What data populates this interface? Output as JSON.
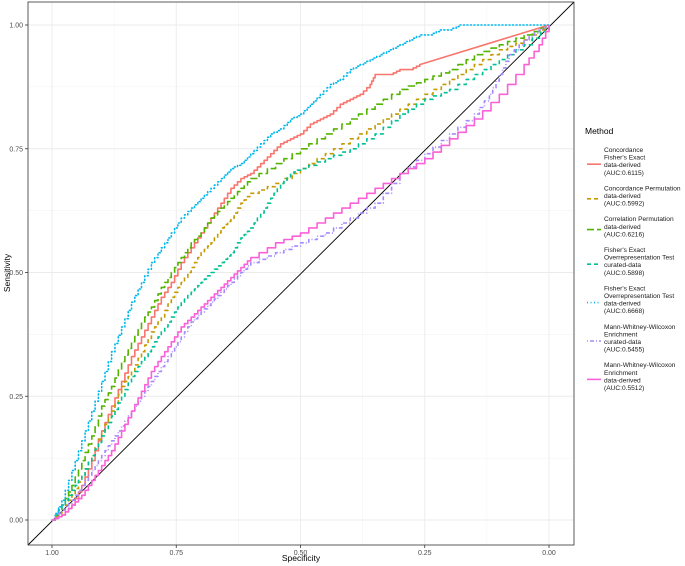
{
  "chart_data": {
    "type": "line",
    "xlabel": "Specificity",
    "ylabel": "Sensitivity",
    "x_reversed": true,
    "xlim": [
      1.0,
      0.0
    ],
    "ylim": [
      0.0,
      1.0
    ],
    "x_ticks": [
      "1.00",
      "0.75",
      "0.50",
      "0.25",
      "0.00"
    ],
    "y_ticks": [
      "0.00",
      "0.25",
      "0.50",
      "0.75",
      "1.00"
    ],
    "grid": true,
    "legend_position": "right",
    "legend_title": "Method",
    "reference_line": "diagonal",
    "series": [
      {
        "name": "Concordance Fisher's Exact data-derived (AUC:0.6115)",
        "label_lines": [
          "Concordance",
          "Fisher's Exact",
          "data-derived",
          "(AUC:0.6115)"
        ],
        "color": "#F8766D",
        "dash": "solid",
        "points": [
          [
            1,
            0
          ],
          [
            0.98,
            0.01
          ],
          [
            0.96,
            0.03
          ],
          [
            0.94,
            0.07
          ],
          [
            0.92,
            0.12
          ],
          [
            0.9,
            0.18
          ],
          [
            0.88,
            0.23
          ],
          [
            0.86,
            0.28
          ],
          [
            0.84,
            0.33
          ],
          [
            0.82,
            0.37
          ],
          [
            0.8,
            0.41
          ],
          [
            0.78,
            0.45
          ],
          [
            0.76,
            0.48
          ],
          [
            0.74,
            0.52
          ],
          [
            0.72,
            0.55
          ],
          [
            0.7,
            0.58
          ],
          [
            0.68,
            0.61
          ],
          [
            0.66,
            0.64
          ],
          [
            0.64,
            0.67
          ],
          [
            0.62,
            0.69
          ],
          [
            0.6,
            0.7
          ],
          [
            0.58,
            0.72
          ],
          [
            0.56,
            0.74
          ],
          [
            0.54,
            0.76
          ],
          [
            0.52,
            0.77
          ],
          [
            0.5,
            0.78
          ],
          [
            0.48,
            0.8
          ],
          [
            0.46,
            0.81
          ],
          [
            0.44,
            0.82
          ],
          [
            0.42,
            0.84
          ],
          [
            0.4,
            0.85
          ],
          [
            0.38,
            0.86
          ],
          [
            0.36,
            0.88
          ],
          [
            0.35,
            0.9
          ],
          [
            0.34,
            0.9
          ],
          [
            0.32,
            0.9
          ],
          [
            0.3,
            0.91
          ],
          [
            0.28,
            0.91
          ],
          [
            0.26,
            0.92
          ],
          [
            0,
            1
          ]
        ]
      },
      {
        "name": "Concordance Permutation data-derived (AUC:0.5992)",
        "label_lines": [
          "Concordance Permutation",
          "data-derived",
          "(AUC:0.5992)"
        ],
        "color": "#C49A00",
        "dash": "dashed",
        "points": [
          [
            1,
            0
          ],
          [
            0.98,
            0.02
          ],
          [
            0.96,
            0.05
          ],
          [
            0.94,
            0.09
          ],
          [
            0.92,
            0.13
          ],
          [
            0.9,
            0.18
          ],
          [
            0.88,
            0.22
          ],
          [
            0.86,
            0.27
          ],
          [
            0.84,
            0.3
          ],
          [
            0.82,
            0.34
          ],
          [
            0.8,
            0.38
          ],
          [
            0.78,
            0.41
          ],
          [
            0.76,
            0.45
          ],
          [
            0.74,
            0.48
          ],
          [
            0.72,
            0.51
          ],
          [
            0.7,
            0.54
          ],
          [
            0.68,
            0.56
          ],
          [
            0.66,
            0.59
          ],
          [
            0.64,
            0.61
          ],
          [
            0.62,
            0.64
          ],
          [
            0.6,
            0.66
          ],
          [
            0.55,
            0.68
          ],
          [
            0.5,
            0.71
          ],
          [
            0.45,
            0.74
          ],
          [
            0.4,
            0.77
          ],
          [
            0.35,
            0.8
          ],
          [
            0.3,
            0.83
          ],
          [
            0.25,
            0.86
          ],
          [
            0.2,
            0.89
          ],
          [
            0.15,
            0.92
          ],
          [
            0.1,
            0.95
          ],
          [
            0.05,
            0.97
          ],
          [
            0,
            1
          ]
        ]
      },
      {
        "name": "Correlation Permutation data-derived (AUC:0.6216)",
        "label_lines": [
          "Correlation Permutation",
          "data-derived",
          "(AUC:0.6216)"
        ],
        "color": "#53B400",
        "dash": "longdash",
        "points": [
          [
            1,
            0
          ],
          [
            0.98,
            0.03
          ],
          [
            0.96,
            0.07
          ],
          [
            0.94,
            0.12
          ],
          [
            0.92,
            0.17
          ],
          [
            0.9,
            0.23
          ],
          [
            0.88,
            0.27
          ],
          [
            0.86,
            0.32
          ],
          [
            0.84,
            0.36
          ],
          [
            0.82,
            0.4
          ],
          [
            0.8,
            0.43
          ],
          [
            0.78,
            0.47
          ],
          [
            0.76,
            0.5
          ],
          [
            0.74,
            0.53
          ],
          [
            0.72,
            0.56
          ],
          [
            0.7,
            0.58
          ],
          [
            0.68,
            0.61
          ],
          [
            0.66,
            0.63
          ],
          [
            0.64,
            0.65
          ],
          [
            0.62,
            0.67
          ],
          [
            0.6,
            0.69
          ],
          [
            0.55,
            0.72
          ],
          [
            0.5,
            0.75
          ],
          [
            0.45,
            0.78
          ],
          [
            0.4,
            0.81
          ],
          [
            0.35,
            0.84
          ],
          [
            0.3,
            0.87
          ],
          [
            0.25,
            0.89
          ],
          [
            0.2,
            0.91
          ],
          [
            0.15,
            0.94
          ],
          [
            0.1,
            0.96
          ],
          [
            0.05,
            0.98
          ],
          [
            0,
            1
          ]
        ]
      },
      {
        "name": "Fisher's Exact Overrepresentation Test curated-data (AUC:0.5898)",
        "label_lines": [
          "Fisher's Exact",
          "Overrepresentation Test",
          "curated-data",
          "(AUC:0.5898)"
        ],
        "color": "#00C094",
        "dash": "dashed",
        "points": [
          [
            1,
            0
          ],
          [
            0.98,
            0.03
          ],
          [
            0.96,
            0.06
          ],
          [
            0.94,
            0.09
          ],
          [
            0.92,
            0.13
          ],
          [
            0.9,
            0.17
          ],
          [
            0.88,
            0.21
          ],
          [
            0.86,
            0.25
          ],
          [
            0.84,
            0.29
          ],
          [
            0.82,
            0.32
          ],
          [
            0.8,
            0.35
          ],
          [
            0.78,
            0.38
          ],
          [
            0.76,
            0.41
          ],
          [
            0.74,
            0.44
          ],
          [
            0.72,
            0.46
          ],
          [
            0.7,
            0.48
          ],
          [
            0.68,
            0.5
          ],
          [
            0.66,
            0.52
          ],
          [
            0.64,
            0.54
          ],
          [
            0.62,
            0.57
          ],
          [
            0.6,
            0.59
          ],
          [
            0.58,
            0.62
          ],
          [
            0.56,
            0.65
          ],
          [
            0.54,
            0.68
          ],
          [
            0.52,
            0.7
          ],
          [
            0.5,
            0.71
          ],
          [
            0.45,
            0.73
          ],
          [
            0.4,
            0.75
          ],
          [
            0.35,
            0.78
          ],
          [
            0.3,
            0.82
          ],
          [
            0.25,
            0.85
          ],
          [
            0.2,
            0.87
          ],
          [
            0.15,
            0.9
          ],
          [
            0.1,
            0.93
          ],
          [
            0.05,
            0.96
          ],
          [
            0,
            1
          ]
        ]
      },
      {
        "name": "Fisher's Exact Overrepresentation Test data-derived (AUC:0.6668)",
        "label_lines": [
          "Fisher's Exact",
          "Overrepresentation Test",
          "data-derived",
          "(AUC:0.6668)"
        ],
        "color": "#00B6EB",
        "dash": "dotted",
        "points": [
          [
            1,
            0
          ],
          [
            0.98,
            0.04
          ],
          [
            0.96,
            0.1
          ],
          [
            0.94,
            0.16
          ],
          [
            0.92,
            0.22
          ],
          [
            0.9,
            0.28
          ],
          [
            0.88,
            0.34
          ],
          [
            0.86,
            0.39
          ],
          [
            0.84,
            0.44
          ],
          [
            0.82,
            0.48
          ],
          [
            0.8,
            0.52
          ],
          [
            0.78,
            0.55
          ],
          [
            0.76,
            0.58
          ],
          [
            0.74,
            0.61
          ],
          [
            0.72,
            0.63
          ],
          [
            0.7,
            0.65
          ],
          [
            0.68,
            0.67
          ],
          [
            0.66,
            0.69
          ],
          [
            0.64,
            0.71
          ],
          [
            0.62,
            0.72
          ],
          [
            0.6,
            0.74
          ],
          [
            0.58,
            0.76
          ],
          [
            0.56,
            0.78
          ],
          [
            0.54,
            0.79
          ],
          [
            0.52,
            0.81
          ],
          [
            0.5,
            0.82
          ],
          [
            0.48,
            0.84
          ],
          [
            0.46,
            0.86
          ],
          [
            0.44,
            0.88
          ],
          [
            0.42,
            0.89
          ],
          [
            0.4,
            0.91
          ],
          [
            0.38,
            0.92
          ],
          [
            0.36,
            0.93
          ],
          [
            0.34,
            0.94
          ],
          [
            0.32,
            0.95
          ],
          [
            0.3,
            0.96
          ],
          [
            0.28,
            0.97
          ],
          [
            0.26,
            0.98
          ],
          [
            0.24,
            0.98
          ],
          [
            0.22,
            0.99
          ],
          [
            0.2,
            0.99
          ],
          [
            0.18,
            1
          ],
          [
            0.1,
            1
          ],
          [
            0.05,
            1
          ],
          [
            0,
            1
          ]
        ]
      },
      {
        "name": "Mann-Whitney-Wilcoxon Enrichment curated-data (AUC:0.5455)",
        "label_lines": [
          "Mann-Whitney-Wilcoxon",
          "Enrichment",
          "curated-data",
          "(AUC:0.5455)"
        ],
        "color": "#A58AFF",
        "dash": "dotdash",
        "points": [
          [
            1,
            0
          ],
          [
            0.98,
            0.02
          ],
          [
            0.96,
            0.04
          ],
          [
            0.94,
            0.07
          ],
          [
            0.92,
            0.1
          ],
          [
            0.9,
            0.13
          ],
          [
            0.88,
            0.16
          ],
          [
            0.86,
            0.19
          ],
          [
            0.84,
            0.22
          ],
          [
            0.82,
            0.25
          ],
          [
            0.8,
            0.28
          ],
          [
            0.78,
            0.31
          ],
          [
            0.76,
            0.34
          ],
          [
            0.74,
            0.37
          ],
          [
            0.72,
            0.4
          ],
          [
            0.7,
            0.42
          ],
          [
            0.68,
            0.44
          ],
          [
            0.66,
            0.46
          ],
          [
            0.64,
            0.48
          ],
          [
            0.62,
            0.5
          ],
          [
            0.6,
            0.52
          ],
          [
            0.55,
            0.54
          ],
          [
            0.5,
            0.56
          ],
          [
            0.45,
            0.58
          ],
          [
            0.4,
            0.61
          ],
          [
            0.35,
            0.64
          ],
          [
            0.3,
            0.7
          ],
          [
            0.25,
            0.74
          ],
          [
            0.2,
            0.78
          ],
          [
            0.15,
            0.82
          ],
          [
            0.12,
            0.86
          ],
          [
            0.1,
            0.9
          ],
          [
            0.08,
            0.94
          ],
          [
            0.05,
            0.97
          ],
          [
            0.02,
            0.99
          ],
          [
            0,
            1
          ]
        ]
      },
      {
        "name": "Mann-Whitney-Wilcoxon Enrichment data-derived (AUC:0.5512)",
        "label_lines": [
          "Mann-Whitney-Wilcoxon",
          "Enrichment",
          "data-derived",
          "(AUC:0.5512)"
        ],
        "color": "#FB61D7",
        "dash": "solid",
        "points": [
          [
            1,
            0
          ],
          [
            0.98,
            0.01
          ],
          [
            0.96,
            0.03
          ],
          [
            0.94,
            0.05
          ],
          [
            0.92,
            0.08
          ],
          [
            0.9,
            0.11
          ],
          [
            0.88,
            0.14
          ],
          [
            0.86,
            0.18
          ],
          [
            0.84,
            0.22
          ],
          [
            0.82,
            0.26
          ],
          [
            0.8,
            0.3
          ],
          [
            0.78,
            0.33
          ],
          [
            0.76,
            0.36
          ],
          [
            0.74,
            0.39
          ],
          [
            0.72,
            0.41
          ],
          [
            0.7,
            0.43
          ],
          [
            0.68,
            0.45
          ],
          [
            0.66,
            0.47
          ],
          [
            0.64,
            0.49
          ],
          [
            0.62,
            0.51
          ],
          [
            0.6,
            0.53
          ],
          [
            0.55,
            0.56
          ],
          [
            0.5,
            0.58
          ],
          [
            0.45,
            0.61
          ],
          [
            0.4,
            0.64
          ],
          [
            0.35,
            0.67
          ],
          [
            0.3,
            0.7
          ],
          [
            0.25,
            0.73
          ],
          [
            0.2,
            0.77
          ],
          [
            0.15,
            0.81
          ],
          [
            0.1,
            0.86
          ],
          [
            0.05,
            0.92
          ],
          [
            0.02,
            0.96
          ],
          [
            0,
            1
          ]
        ]
      }
    ]
  }
}
